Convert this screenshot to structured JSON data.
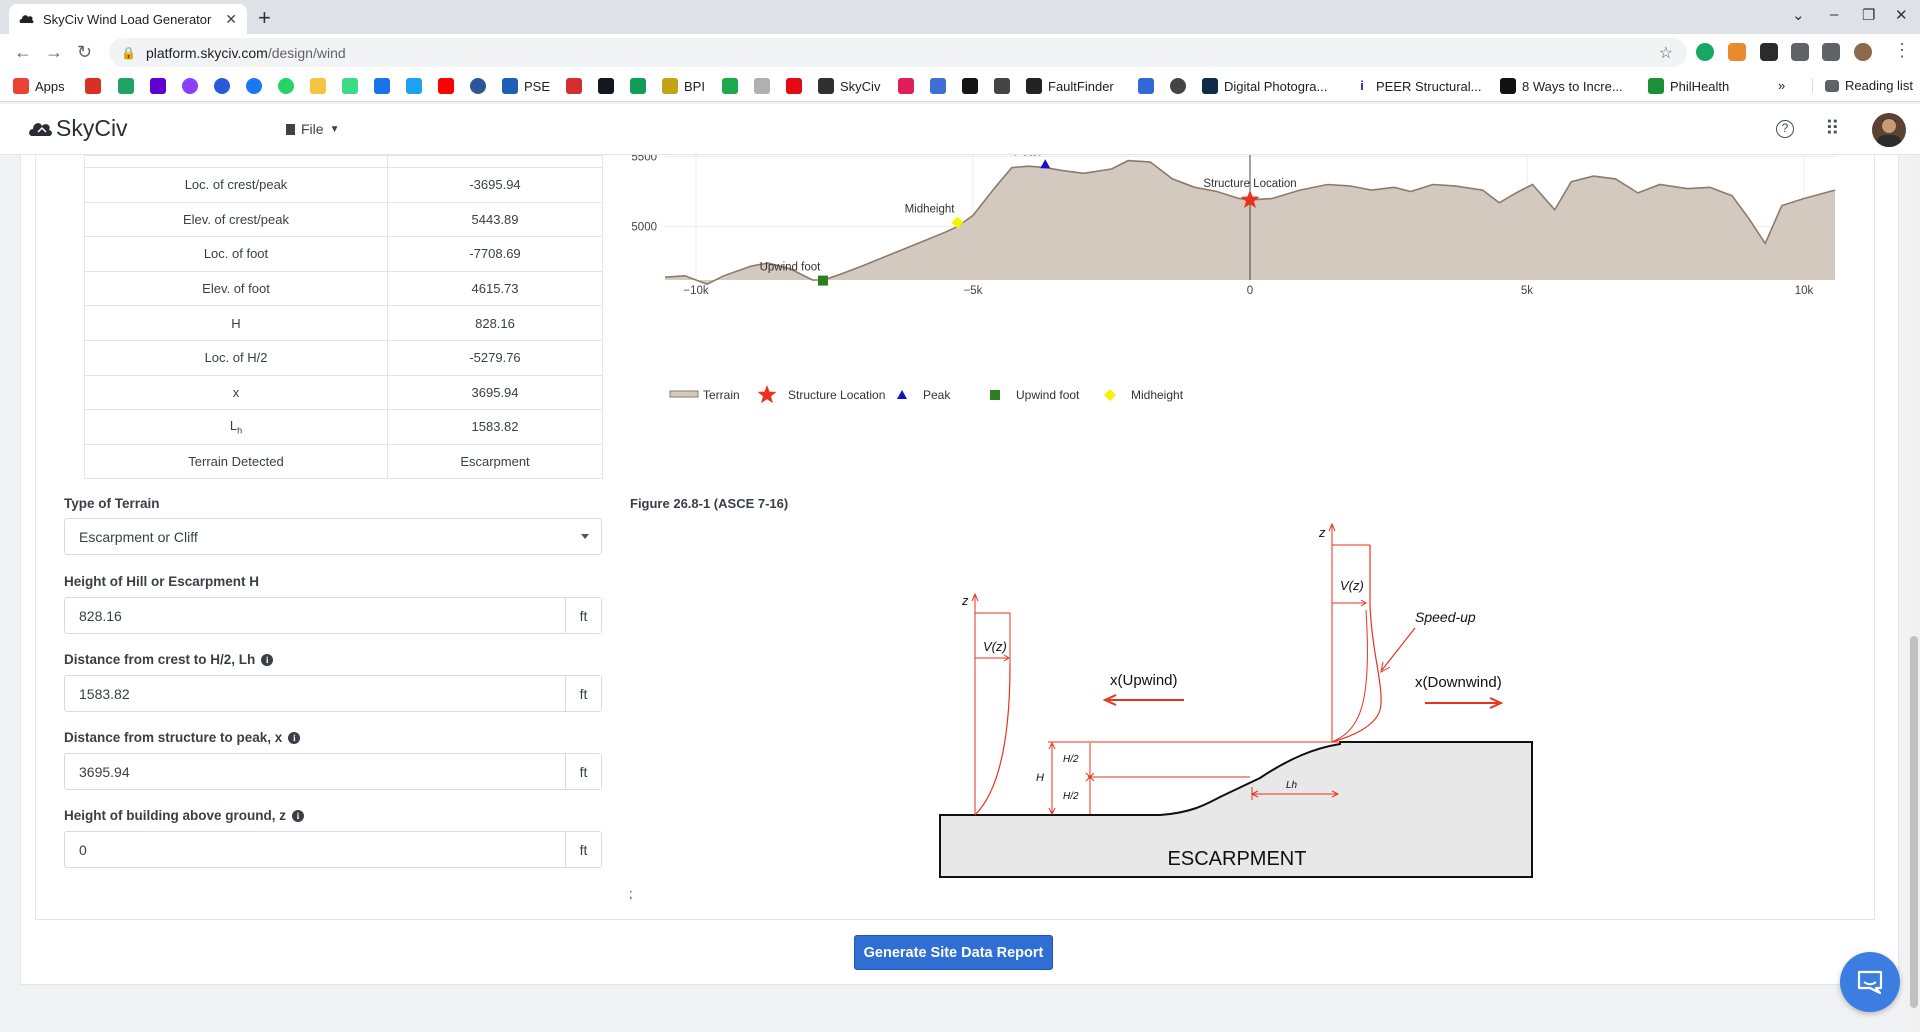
{
  "browser": {
    "tab_title": "SkyCiv Wind Load Generator",
    "url_host": "platform.skyciv.com",
    "url_path": "/design/wind",
    "reading_list": "Reading list",
    "bookmarks": [
      "Apps",
      "PSE",
      "BPI",
      "SkyCiv",
      "FaultFinder",
      "Digital Photogra...",
      "PEER Structural...",
      "8 Ways to Incre...",
      "PhilHealth"
    ]
  },
  "app": {
    "logo": "SkyCiv",
    "file_menu": "File"
  },
  "site_table": {
    "rows": [
      {
        "label": "Loc. of crest/peak",
        "value": "-3695.94"
      },
      {
        "label": "Elev. of crest/peak",
        "value": "5443.89"
      },
      {
        "label": "Loc. of foot",
        "value": "-7708.69"
      },
      {
        "label": "Elev. of foot",
        "value": "4615.73"
      },
      {
        "label": "H",
        "value": "828.16"
      },
      {
        "label": "Loc. of H/2",
        "value": "-5279.76"
      },
      {
        "label": "x",
        "value": "3695.94"
      },
      {
        "label": "Lh",
        "value": "1583.82"
      },
      {
        "label": "Terrain Detected",
        "value": "Escarpment"
      }
    ]
  },
  "form": {
    "terrain_type_label": "Type of Terrain",
    "terrain_type_value": "Escarpment or Cliff",
    "height_label": "Height of Hill or Escarpment H",
    "height_value": "828.16",
    "lh_label": "Distance from crest to H/2, Lh",
    "lh_value": "1583.82",
    "x_label": "Distance from structure to peak, x",
    "x_value": "3695.94",
    "z_label": "Height of building above ground, z",
    "z_value": "0",
    "unit": "ft"
  },
  "figure": {
    "title": "Figure 26.8-1 (ASCE 7-16)",
    "label_escarpment": "ESCARPMENT",
    "label_upwind": "x(Upwind)",
    "label_downwind": "x(Downwind)",
    "label_speedup": "Speed-up",
    "label_vz": "V(z)",
    "label_z": "z",
    "label_h": "H",
    "label_h2": "H/2",
    "label_lh": "Lh",
    "trailing": ";"
  },
  "buttons": {
    "generate": "Generate Site Data Report"
  },
  "chart_data": {
    "type": "area",
    "x_ticks": [
      "−10k",
      "−5k",
      "0",
      "5k",
      "10k"
    ],
    "y_ticks": [
      "5000",
      "5500"
    ],
    "xlim": [
      -10560,
      10560
    ],
    "ylim": [
      4620,
      5510
    ],
    "terrain": {
      "name": "Terrain",
      "x": [
        -10560,
        -10200,
        -9800,
        -9500,
        -9000,
        -8700,
        -8300,
        -7900,
        -7700,
        -7400,
        -7000,
        -6500,
        -6000,
        -5500,
        -5280,
        -5000,
        -4600,
        -4300,
        -4000,
        -3695,
        -3400,
        -3000,
        -2500,
        -2200,
        -1800,
        -1400,
        -1000,
        -600,
        -200,
        0,
        400,
        900,
        1400,
        1800,
        2200,
        2600,
        2900,
        3300,
        3700,
        4200,
        4500,
        4800,
        5100,
        5500,
        5800,
        6200,
        6600,
        7000,
        7400,
        7900,
        8300,
        8700,
        9000,
        9300,
        9600,
        10000,
        10560
      ],
      "y": [
        4640,
        4650,
        4590,
        4650,
        4720,
        4740,
        4700,
        4620,
        4620,
        4660,
        4720,
        4800,
        4880,
        4960,
        5000,
        5080,
        5280,
        5420,
        5430,
        5420,
        5400,
        5380,
        5410,
        5470,
        5460,
        5340,
        5280,
        5250,
        5200,
        5190,
        5200,
        5260,
        5300,
        5290,
        5260,
        5280,
        5250,
        5300,
        5290,
        5260,
        5170,
        5240,
        5300,
        5120,
        5320,
        5360,
        5340,
        5240,
        5300,
        5270,
        5280,
        5220,
        5060,
        4880,
        5150,
        5200,
        5260
      ]
    },
    "markers": [
      {
        "name": "Structure Location",
        "x": 0,
        "y": 5190,
        "label": "Structure Location"
      },
      {
        "name": "Peak",
        "x": -3695.94,
        "y": 5443.89,
        "label": "Peak"
      },
      {
        "name": "Upwind foot",
        "x": -7708.69,
        "y": 4615.73,
        "label": "Upwind foot"
      },
      {
        "name": "Midheight",
        "x": -5279.76,
        "y": 5029.81,
        "label": "Midheight"
      }
    ],
    "legend": [
      "Terrain",
      "Structure Location",
      "Peak",
      "Upwind foot",
      "Midheight"
    ]
  },
  "colors": {
    "terrain_fill": "#d3c9bf",
    "terrain_line": "#8c7a6b",
    "structure": "#e8321c",
    "peak": "#1212c8",
    "upwind_foot": "#2e7d1f",
    "midheight": "#f4f400",
    "primary_button": "#2f6ed3"
  }
}
